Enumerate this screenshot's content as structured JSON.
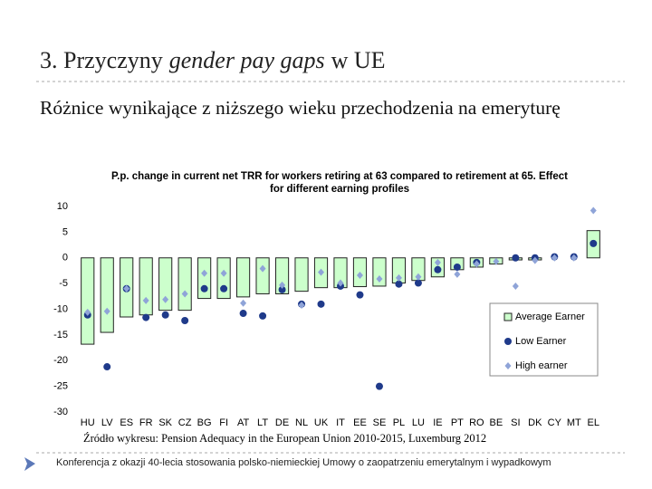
{
  "slide": {
    "title": [
      "3. Przyczyny",
      "gender pay gaps",
      "w UE"
    ],
    "subtitle": "Różnice wynikające z niższego wieku przechodzenia na emeryturę",
    "source": "Źródło wykresu: Pension Adequacy in the European Union 2010-2015, Luxemburg 2012",
    "footer": "Konferencja z okazji 40-lecia stosowania polsko-niemieckiej Umowy o zaopatrzeniu emerytalnym i wypadkowym"
  },
  "chart_data": {
    "type": "bar",
    "title": "P.p. change in current net TRR for workers retiring at 63 compared to retirement at 65. Effect for different earning profiles",
    "categories": [
      "HU",
      "LV",
      "ES",
      "FR",
      "SK",
      "CZ",
      "BG",
      "FI",
      "AT",
      "LT",
      "DE",
      "NL",
      "UK",
      "IT",
      "EE",
      "SE",
      "PL",
      "LU",
      "IE",
      "PT",
      "RO",
      "BE",
      "SI",
      "DK",
      "CY",
      "MT",
      "EL"
    ],
    "series": [
      {
        "name": "Average Earner",
        "marker": "bar",
        "color": "#ccffcc",
        "values": [
          -16.8,
          -14.5,
          -11.5,
          -11.1,
          -10.2,
          -10.2,
          -7.9,
          -7.9,
          -7.6,
          -7,
          -7,
          -6.5,
          -5.8,
          -5.8,
          -5.6,
          -5.5,
          -4.9,
          -4.4,
          -3.7,
          -2.3,
          -1.8,
          -1.2,
          -0.4,
          -0.4,
          0,
          0,
          5.3
        ]
      },
      {
        "name": "Low Earner",
        "marker": "circle",
        "color": "#1f3a8a",
        "values": [
          -11.1,
          -21.2,
          -6,
          -11.6,
          -11.1,
          -12.2,
          -6,
          -6,
          -10.8,
          -11.3,
          -6.2,
          -9,
          -9,
          -5.5,
          -7.2,
          -25,
          -5.1,
          -4.9,
          -2.3,
          -1.8,
          -0.9,
          null,
          0,
          0,
          0.2,
          0.2,
          2.8
        ]
      },
      {
        "name": "High earner",
        "marker": "diamond",
        "color": "#8fa4d8",
        "values": [
          -10.6,
          -10.4,
          -6,
          -8.3,
          -8.1,
          -7,
          -3,
          -3,
          -8.8,
          -2.1,
          -5.3,
          -9.2,
          -2.8,
          -4.9,
          -3.4,
          -4.1,
          -3.9,
          -3.7,
          -0.9,
          -3.2,
          -1.2,
          -0.7,
          -5.5,
          -0.5,
          0,
          0,
          9.2
        ]
      }
    ],
    "ylim": [
      -30,
      10
    ],
    "yticks": [
      10,
      5,
      0,
      -5,
      -10,
      -15,
      -20,
      -25,
      -30
    ],
    "grid": false,
    "legend": "lower right"
  }
}
